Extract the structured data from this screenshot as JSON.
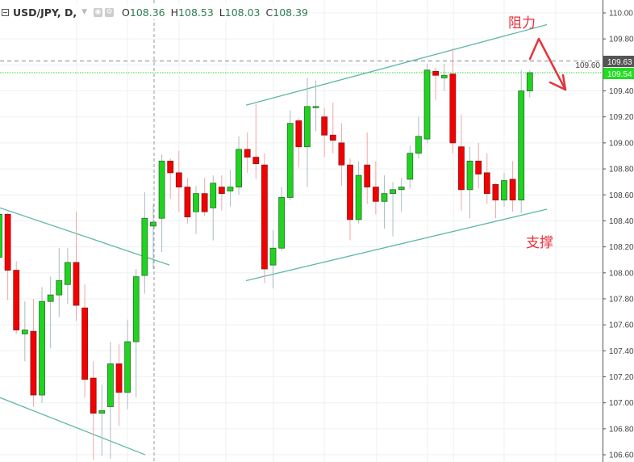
{
  "legend": {
    "symbol": "USD/JPY, D,",
    "open_label": "O",
    "open": "108.36",
    "high_label": "H",
    "high": "108.53",
    "low_label": "L",
    "low": "108.03",
    "close_label": "C",
    "close": "108.39",
    "icons": [
      "collapse-icon",
      "dropdown-caret-icon",
      "eye-icon",
      "settings-gear-icon"
    ]
  },
  "annotations": {
    "resistance": "阻力",
    "support": "支撑",
    "color": "#e8323c"
  },
  "price_labels": {
    "dashed_level": "109.63",
    "last_price": "109.54"
  },
  "colors": {
    "up": "#1fd41f",
    "down": "#f40000",
    "trendline": "#5fb8a6",
    "last_price": "#22dd22",
    "dashed_level": "#555555"
  },
  "chart_data": {
    "type": "candlestick",
    "title": "USD/JPY, D,",
    "ylim": [
      106.55,
      110.1
    ],
    "y_ticks": [
      "110.00",
      "109.80",
      "109.60",
      "109.40",
      "109.20",
      "109.00",
      "108.80",
      "108.60",
      "108.40",
      "108.20",
      "108.00",
      "107.80",
      "107.60",
      "107.40",
      "107.20",
      "107.00",
      "106.80",
      "106.60"
    ],
    "grid": true,
    "candles_ohlc": [
      [
        108.12,
        108.5,
        108.05,
        108.45
      ],
      [
        108.45,
        108.46,
        107.79,
        108.02
      ],
      [
        108.02,
        108.09,
        107.53,
        107.56
      ],
      [
        107.53,
        107.78,
        107.32,
        107.56
      ],
      [
        107.55,
        107.8,
        106.97,
        107.06
      ],
      [
        107.06,
        107.89,
        107.0,
        107.78
      ],
      [
        107.78,
        107.97,
        107.42,
        107.83
      ],
      [
        107.83,
        108.19,
        107.66,
        107.94
      ],
      [
        107.91,
        108.19,
        107.76,
        108.08
      ],
      [
        108.08,
        108.47,
        107.63,
        107.75
      ],
      [
        107.73,
        107.91,
        107.04,
        107.18
      ],
      [
        107.19,
        107.32,
        106.56,
        106.92
      ],
      [
        106.92,
        107.14,
        106.59,
        106.94
      ],
      [
        106.97,
        107.47,
        106.57,
        107.3
      ],
      [
        107.3,
        107.45,
        106.82,
        107.08
      ],
      [
        107.08,
        107.64,
        106.95,
        107.47
      ],
      [
        107.47,
        108.03,
        107.04,
        107.97
      ],
      [
        107.98,
        108.62,
        107.84,
        108.42
      ],
      [
        108.36,
        108.53,
        108.03,
        108.39
      ],
      [
        108.42,
        108.91,
        108.16,
        108.86
      ],
      [
        108.86,
        108.88,
        108.57,
        108.77
      ],
      [
        108.77,
        108.94,
        108.47,
        108.66
      ],
      [
        108.66,
        108.73,
        108.38,
        108.43
      ],
      [
        108.47,
        108.67,
        108.3,
        108.61
      ],
      [
        108.61,
        108.73,
        108.44,
        108.47
      ],
      [
        108.5,
        108.75,
        108.25,
        108.69
      ],
      [
        108.66,
        108.75,
        108.48,
        108.61
      ],
      [
        108.63,
        108.79,
        108.51,
        108.66
      ],
      [
        108.66,
        109.05,
        108.6,
        108.95
      ],
      [
        108.95,
        109.08,
        108.77,
        108.89
      ],
      [
        108.89,
        109.3,
        108.72,
        108.84
      ],
      [
        108.83,
        108.92,
        107.92,
        108.03
      ],
      [
        108.06,
        108.33,
        107.88,
        108.19
      ],
      [
        108.19,
        108.66,
        108.17,
        108.58
      ],
      [
        108.58,
        109.25,
        108.56,
        109.15
      ],
      [
        109.17,
        109.19,
        108.81,
        108.97
      ],
      [
        108.97,
        109.5,
        108.66,
        109.28
      ],
      [
        109.28,
        109.48,
        109.09,
        109.28
      ],
      [
        109.2,
        109.27,
        108.89,
        109.06
      ],
      [
        109.06,
        109.31,
        108.92,
        109.02
      ],
      [
        109.0,
        109.15,
        108.67,
        108.83
      ],
      [
        108.83,
        108.88,
        108.25,
        108.41
      ],
      [
        108.41,
        108.86,
        108.38,
        108.75
      ],
      [
        108.83,
        109.08,
        108.53,
        108.66
      ],
      [
        108.66,
        108.86,
        108.45,
        108.55
      ],
      [
        108.55,
        108.75,
        108.34,
        108.61
      ],
      [
        108.61,
        108.7,
        108.28,
        108.64
      ],
      [
        108.64,
        108.73,
        108.47,
        108.66
      ],
      [
        108.72,
        108.98,
        108.65,
        108.92
      ],
      [
        108.92,
        109.2,
        108.88,
        109.05
      ],
      [
        109.03,
        109.61,
        109.0,
        109.56
      ],
      [
        109.55,
        109.58,
        109.33,
        109.52
      ],
      [
        109.5,
        109.61,
        109.4,
        109.52
      ],
      [
        109.53,
        109.73,
        108.92,
        109.0
      ],
      [
        108.97,
        109.22,
        108.48,
        108.64
      ],
      [
        108.64,
        108.97,
        108.42,
        108.86
      ],
      [
        108.86,
        109.0,
        108.65,
        108.76
      ],
      [
        108.77,
        108.92,
        108.53,
        108.61
      ],
      [
        108.68,
        108.69,
        108.42,
        108.56
      ],
      [
        108.56,
        108.77,
        108.51,
        108.71
      ],
      [
        108.72,
        108.86,
        108.47,
        108.56
      ],
      [
        108.56,
        109.56,
        108.46,
        109.4
      ],
      [
        109.4,
        109.56,
        109.35,
        109.54
      ]
    ],
    "trendlines": [
      {
        "role": "resistance-channel-upper",
        "from": [
          28.84,
          109.29
        ],
        "to": [
          64.0,
          109.91
        ]
      },
      {
        "role": "support-channel-lower",
        "from": [
          28.84,
          107.94
        ],
        "to": [
          64.0,
          108.49
        ]
      },
      {
        "role": "descending-channel-upper",
        "from": [
          0.09,
          108.5
        ],
        "to": [
          19.9,
          108.06
        ]
      },
      {
        "role": "descending-channel-lower",
        "from": [
          0.09,
          107.04
        ],
        "to": [
          17.06,
          106.6
        ]
      }
    ],
    "horizontal_levels": [
      {
        "value": 109.63,
        "style": "dashed"
      },
      {
        "value": 109.54,
        "style": "dotted",
        "label": "last price"
      }
    ],
    "crosshair_bar": 18
  }
}
